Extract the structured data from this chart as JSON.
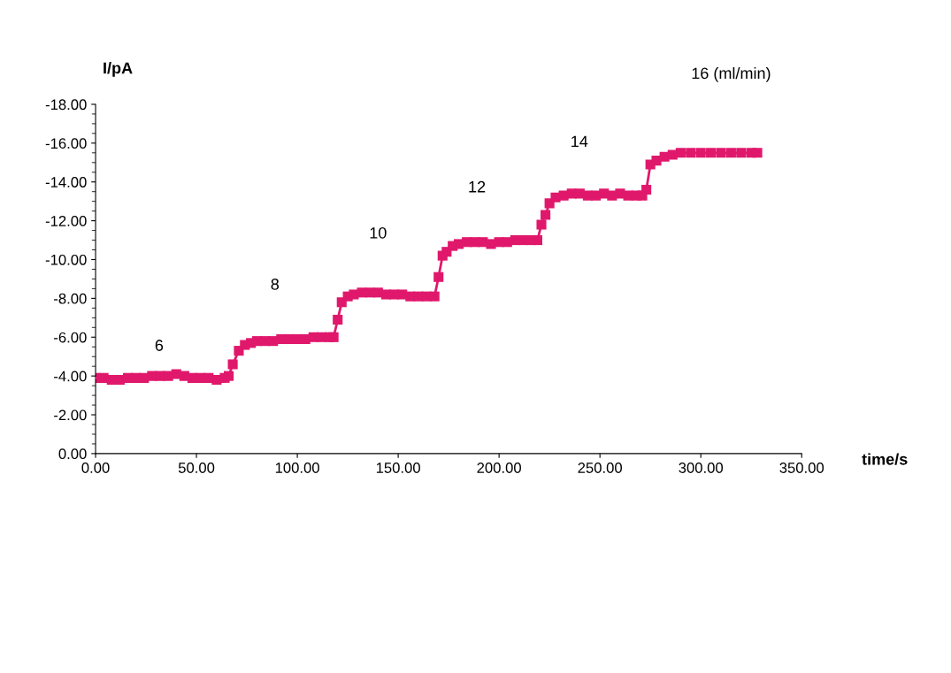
{
  "chart_data": {
    "type": "line",
    "xlabel": "time/s",
    "ylabel": "I/pA",
    "x": [
      0,
      4,
      8,
      12,
      16,
      20,
      24,
      28,
      32,
      36,
      40,
      44,
      48,
      52,
      56,
      60,
      64,
      66,
      68,
      71,
      74,
      77,
      80,
      84,
      88,
      92,
      96,
      100,
      104,
      108,
      112,
      116,
      118,
      120,
      122,
      125,
      128,
      132,
      136,
      140,
      144,
      148,
      152,
      156,
      160,
      164,
      168,
      170,
      172,
      174,
      177,
      180,
      184,
      188,
      192,
      196,
      200,
      204,
      208,
      212,
      216,
      219,
      221,
      223,
      225,
      228,
      232,
      236,
      240,
      244,
      248,
      252,
      256,
      260,
      264,
      268,
      271,
      273,
      275,
      278,
      282,
      286,
      290,
      295,
      300,
      305,
      310,
      315,
      320,
      325,
      328
    ],
    "series": [
      {
        "color": "#e0186c",
        "values": [
          -3.9,
          -3.9,
          -3.8,
          -3.8,
          -3.9,
          -3.9,
          -3.9,
          -4.0,
          -4.0,
          -4.0,
          -4.1,
          -4.0,
          -3.9,
          -3.9,
          -3.9,
          -3.8,
          -3.9,
          -4.0,
          -4.6,
          -5.3,
          -5.6,
          -5.7,
          -5.8,
          -5.8,
          -5.8,
          -5.9,
          -5.9,
          -5.9,
          -5.9,
          -6.0,
          -6.0,
          -6.0,
          -6.0,
          -6.9,
          -7.8,
          -8.1,
          -8.2,
          -8.3,
          -8.3,
          -8.3,
          -8.2,
          -8.2,
          -8.2,
          -8.1,
          -8.1,
          -8.1,
          -8.1,
          -9.1,
          -10.2,
          -10.4,
          -10.7,
          -10.8,
          -10.9,
          -10.9,
          -10.9,
          -10.8,
          -10.9,
          -10.9,
          -11.0,
          -11.0,
          -11.0,
          -11.0,
          -11.8,
          -12.3,
          -12.9,
          -13.2,
          -13.3,
          -13.4,
          -13.4,
          -13.3,
          -13.3,
          -13.4,
          -13.3,
          -13.4,
          -13.3,
          -13.3,
          -13.3,
          -13.6,
          -14.9,
          -15.1,
          -15.3,
          -15.4,
          -15.5,
          -15.5,
          -15.5,
          -15.5,
          -15.5,
          -15.5,
          -15.5,
          -15.5,
          -15.5
        ]
      }
    ],
    "marker": "square",
    "line_style": "solid",
    "grid": false,
    "legend": false,
    "xlim": [
      0,
      350
    ],
    "ylim": [
      0,
      -18
    ],
    "xticks": [
      {
        "value": 0,
        "label": "0.00"
      },
      {
        "value": 50,
        "label": "50.00"
      },
      {
        "value": 100,
        "label": "100.00"
      },
      {
        "value": 150,
        "label": "150.00"
      },
      {
        "value": 200,
        "label": "200.00"
      },
      {
        "value": 250,
        "label": "250.00"
      },
      {
        "value": 300,
        "label": "300.00"
      },
      {
        "value": 350,
        "label": "350.00"
      }
    ],
    "yticks": [
      {
        "value": 0,
        "label": "0.00"
      },
      {
        "value": -2,
        "label": "-2.00"
      },
      {
        "value": -4,
        "label": "-4.00"
      },
      {
        "value": -6,
        "label": "-6.00"
      },
      {
        "value": -8,
        "label": "-8.00"
      },
      {
        "value": -10,
        "label": "-10.00"
      },
      {
        "value": -12,
        "label": "-12.00"
      },
      {
        "value": -14,
        "label": "-14.00"
      },
      {
        "value": -16,
        "label": "-16.00"
      },
      {
        "value": -18,
        "label": "-18.00"
      }
    ],
    "annotations": [
      "6",
      "8",
      "10",
      "12",
      "14",
      "16 (ml/min)"
    ]
  }
}
